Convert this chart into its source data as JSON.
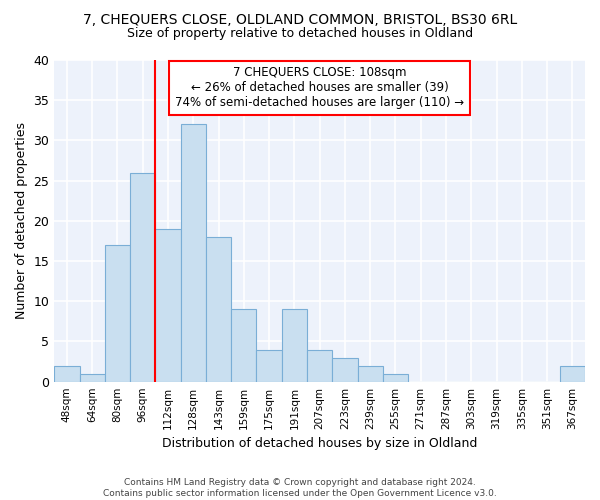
{
  "title_line1": "7, CHEQUERS CLOSE, OLDLAND COMMON, BRISTOL, BS30 6RL",
  "title_line2": "Size of property relative to detached houses in Oldland",
  "xlabel": "Distribution of detached houses by size in Oldland",
  "ylabel": "Number of detached properties",
  "bar_color": "#c9dff0",
  "bar_edge_color": "#7aaed6",
  "categories": [
    "48sqm",
    "64sqm",
    "80sqm",
    "96sqm",
    "112sqm",
    "128sqm",
    "143sqm",
    "159sqm",
    "175sqm",
    "191sqm",
    "207sqm",
    "223sqm",
    "239sqm",
    "255sqm",
    "271sqm",
    "287sqm",
    "303sqm",
    "319sqm",
    "335sqm",
    "351sqm",
    "367sqm"
  ],
  "values": [
    2,
    1,
    17,
    26,
    19,
    32,
    18,
    9,
    4,
    9,
    4,
    3,
    2,
    1,
    0,
    0,
    0,
    0,
    0,
    0,
    2
  ],
  "annotation_title": "7 CHEQUERS CLOSE: 108sqm",
  "annotation_line1": "← 26% of detached houses are smaller (39)",
  "annotation_line2": "74% of semi-detached houses are larger (110) →",
  "red_line_index": 4,
  "ylim": [
    0,
    40
  ],
  "yticks": [
    0,
    5,
    10,
    15,
    20,
    25,
    30,
    35,
    40
  ],
  "plot_bg_color": "#edf2fb",
  "grid_color": "#ffffff",
  "fig_bg_color": "#ffffff",
  "footer_line1": "Contains HM Land Registry data © Crown copyright and database right 2024.",
  "footer_line2": "Contains public sector information licensed under the Open Government Licence v3.0."
}
